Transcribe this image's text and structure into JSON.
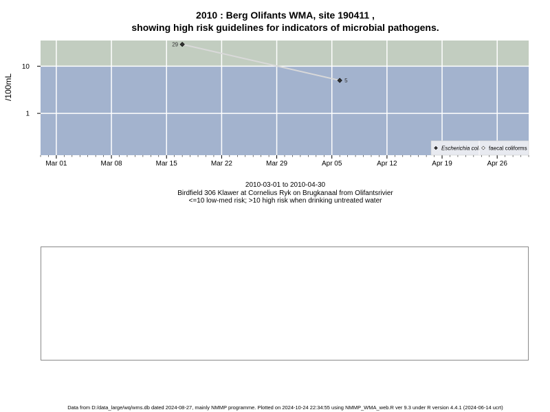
{
  "title_line1": "2010 : Berg Olifants WMA, site 190411 ,",
  "title_line2": "showing high risk guidelines for indicators of microbial pathogens.",
  "caption": {
    "line1": "2010-03-01 to 2010-04-30",
    "line2": "Birdfield 306 Klawer at Cornelius Ryk on Brugkanaal from Olifantsrivier",
    "line3": "<=10 low-med risk; >10 high risk when drinking untreated water"
  },
  "footer": "Data from D:/data_large/wq/wms.db dated 2024-08-27, mainly NMMP programme. Plotted on 2024-10-24 22:34:55 using NMMP_WMA_web.R ver 9.3 under R version 4.4.1 (2024-06-14 ucrt)",
  "colors": {
    "high_risk_band": "#c2cdc0",
    "low_risk_band": "#a3b3ce",
    "grid": "#ffffff",
    "series_line": "#d9d9d9",
    "marker": "#333333"
  },
  "chart_data": {
    "type": "line",
    "scale_y": "log",
    "ylabel": "/100mL",
    "ytick_labels": [
      "1",
      "10"
    ],
    "yticks": [
      1,
      10
    ],
    "ylim": [
      0.13,
      35
    ],
    "xlim": [
      "2010-02-27",
      "2010-04-30"
    ],
    "xtick_labels": [
      "Mar 01",
      "Mar 08",
      "Mar 15",
      "Mar 22",
      "Mar 29",
      "Apr 05",
      "Apr 12",
      "Apr 19",
      "Apr 26"
    ],
    "xticks": [
      "2010-03-01",
      "2010-03-08",
      "2010-03-15",
      "2010-03-22",
      "2010-03-29",
      "2010-04-05",
      "2010-04-12",
      "2010-04-19",
      "2010-04-26"
    ],
    "threshold": 10,
    "grid": true,
    "legend_position": "bottom-right",
    "legend": [
      "Escherichia coli",
      "faecal coliforms"
    ],
    "series": [
      {
        "name": "Escherichia coli",
        "points": [
          {
            "date": "2010-03-17",
            "value": 29,
            "label": "29"
          },
          {
            "date": "2010-04-06",
            "value": 5,
            "label": "5"
          }
        ]
      },
      {
        "name": "faecal coliforms",
        "points": []
      }
    ]
  }
}
